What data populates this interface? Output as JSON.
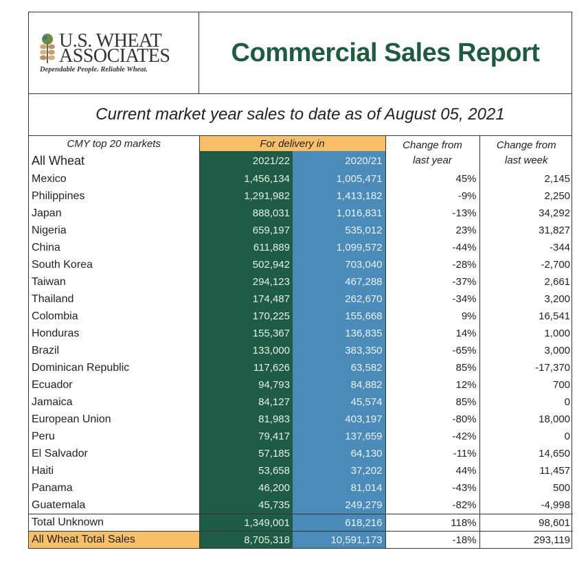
{
  "header": {
    "logo": {
      "line1": "U.S. WHEAT",
      "line2": "ASSOCIATES",
      "tagline": "Dependable People. Reliable Wheat."
    },
    "title": "Commercial Sales Report",
    "subtitle": "Current market year sales to date as of August 05, 2021"
  },
  "colors": {
    "title_green": "#1f5b42",
    "col_2021_bg": "#1e5c45",
    "col_2020_bg": "#4a8bb8",
    "highlight_orange": "#f9c06a"
  },
  "table": {
    "headers": {
      "markets": "CMY top 20 markets",
      "delivery": "For delivery in",
      "all_wheat": "All Wheat",
      "year_current": "2021/22",
      "year_previous": "2020/21",
      "change_year_l1": "Change from",
      "change_year_l2": "last year",
      "change_week_l1": "Change from",
      "change_week_l2": "last week"
    },
    "rows": [
      {
        "country": "Mexico",
        "y2021": "1,456,134",
        "y2020": "1,005,471",
        "chg_year": "45%",
        "chg_week": "2,145"
      },
      {
        "country": "Philippines",
        "y2021": "1,291,982",
        "y2020": "1,413,182",
        "chg_year": "-9%",
        "chg_week": "2,250"
      },
      {
        "country": "Japan",
        "y2021": "888,031",
        "y2020": "1,016,831",
        "chg_year": "-13%",
        "chg_week": "34,292"
      },
      {
        "country": "Nigeria",
        "y2021": "659,197",
        "y2020": "535,012",
        "chg_year": "23%",
        "chg_week": "31,827"
      },
      {
        "country": "China",
        "y2021": "611,889",
        "y2020": "1,099,572",
        "chg_year": "-44%",
        "chg_week": "-344"
      },
      {
        "country": "South Korea",
        "y2021": "502,942",
        "y2020": "703,040",
        "chg_year": "-28%",
        "chg_week": "-2,700"
      },
      {
        "country": "Taiwan",
        "y2021": "294,123",
        "y2020": "467,288",
        "chg_year": "-37%",
        "chg_week": "2,661"
      },
      {
        "country": "Thailand",
        "y2021": "174,487",
        "y2020": "262,670",
        "chg_year": "-34%",
        "chg_week": "3,200"
      },
      {
        "country": "Colombia",
        "y2021": "170,225",
        "y2020": "155,668",
        "chg_year": "9%",
        "chg_week": "16,541"
      },
      {
        "country": "Honduras",
        "y2021": "155,367",
        "y2020": "136,835",
        "chg_year": "14%",
        "chg_week": "1,000"
      },
      {
        "country": "Brazil",
        "y2021": "133,000",
        "y2020": "383,350",
        "chg_year": "-65%",
        "chg_week": "3,000"
      },
      {
        "country": "Dominican Republic",
        "y2021": "117,626",
        "y2020": "63,582",
        "chg_year": "85%",
        "chg_week": "-17,370"
      },
      {
        "country": "Ecuador",
        "y2021": "94,793",
        "y2020": "84,882",
        "chg_year": "12%",
        "chg_week": "700"
      },
      {
        "country": "Jamaica",
        "y2021": "84,127",
        "y2020": "45,574",
        "chg_year": "85%",
        "chg_week": "0"
      },
      {
        "country": "European Union",
        "y2021": "81,983",
        "y2020": "403,197",
        "chg_year": "-80%",
        "chg_week": "18,000"
      },
      {
        "country": "Peru",
        "y2021": "79,417",
        "y2020": "137,659",
        "chg_year": "-42%",
        "chg_week": "0"
      },
      {
        "country": "El Salvador",
        "y2021": "57,185",
        "y2020": "64,130",
        "chg_year": "-11%",
        "chg_week": "14,650"
      },
      {
        "country": "Haiti",
        "y2021": "53,658",
        "y2020": "37,202",
        "chg_year": "44%",
        "chg_week": "11,457"
      },
      {
        "country": "Panama",
        "y2021": "46,200",
        "y2020": "81,014",
        "chg_year": "-43%",
        "chg_week": "500"
      },
      {
        "country": "Guatemala",
        "y2021": "45,735",
        "y2020": "249,279",
        "chg_year": "-82%",
        "chg_week": "-4,998"
      }
    ],
    "total_unknown": {
      "label": "Total Unknown",
      "y2021": "1,349,001",
      "y2020": "618,216",
      "chg_year": "118%",
      "chg_week": "98,601"
    },
    "grand_total": {
      "label": "All Wheat Total Sales",
      "y2021": "8,705,318",
      "y2020": "10,591,173",
      "chg_year": "-18%",
      "chg_week": "293,119"
    }
  }
}
